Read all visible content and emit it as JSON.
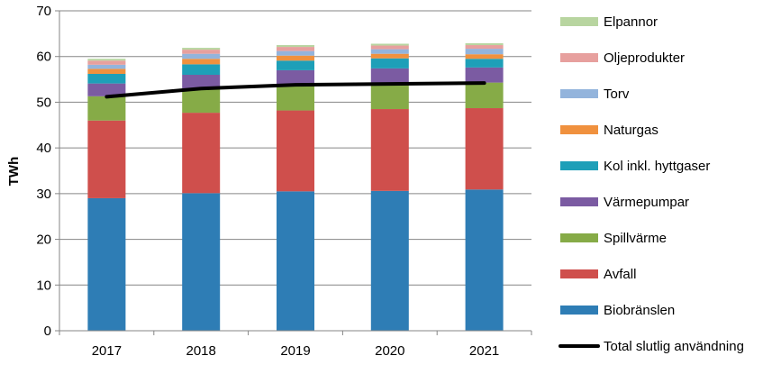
{
  "chart_data": {
    "type": "bar",
    "stacked": true,
    "title": "",
    "xlabel": "",
    "ylabel": "TWh",
    "ylim": [
      0,
      70
    ],
    "yticks": [
      0,
      10,
      20,
      30,
      40,
      50,
      60,
      70
    ],
    "grid": true,
    "legend_position": "right",
    "categories": [
      "2017",
      "2018",
      "2019",
      "2020",
      "2021"
    ],
    "series": [
      {
        "name": "Biobränslen",
        "color": "#2e7db5",
        "values": [
          29.0,
          30.1,
          30.5,
          30.6,
          30.9
        ]
      },
      {
        "name": "Avfall",
        "color": "#cf4f4c",
        "values": [
          17.0,
          17.6,
          17.7,
          17.9,
          17.8
        ]
      },
      {
        "name": "Spillvärme",
        "color": "#86ab47",
        "values": [
          5.3,
          5.2,
          5.4,
          5.3,
          5.6
        ]
      },
      {
        "name": "Värmepumpar",
        "color": "#7b5ba2",
        "values": [
          2.8,
          3.1,
          3.4,
          3.6,
          3.3
        ]
      },
      {
        "name": "Kol inkl. hyttgaser",
        "color": "#1e9fb8",
        "values": [
          2.1,
          2.3,
          2.1,
          2.2,
          1.9
        ]
      },
      {
        "name": "Naturgas",
        "color": "#f0913e",
        "values": [
          1.1,
          1.2,
          1.1,
          1.0,
          1.0
        ]
      },
      {
        "name": "Torv",
        "color": "#93b4dc",
        "values": [
          0.9,
          1.1,
          1.0,
          1.0,
          1.2
        ]
      },
      {
        "name": "Oljeprodukter",
        "color": "#e7a09e",
        "values": [
          0.9,
          0.9,
          0.9,
          0.8,
          0.8
        ]
      },
      {
        "name": "Elpannor",
        "color": "#b8d5a0",
        "values": [
          0.4,
          0.4,
          0.4,
          0.4,
          0.4
        ]
      }
    ],
    "line": {
      "name": "Total slutlig användning",
      "color": "#000000",
      "values": [
        51.2,
        53.0,
        53.8,
        54.0,
        54.2
      ]
    }
  }
}
